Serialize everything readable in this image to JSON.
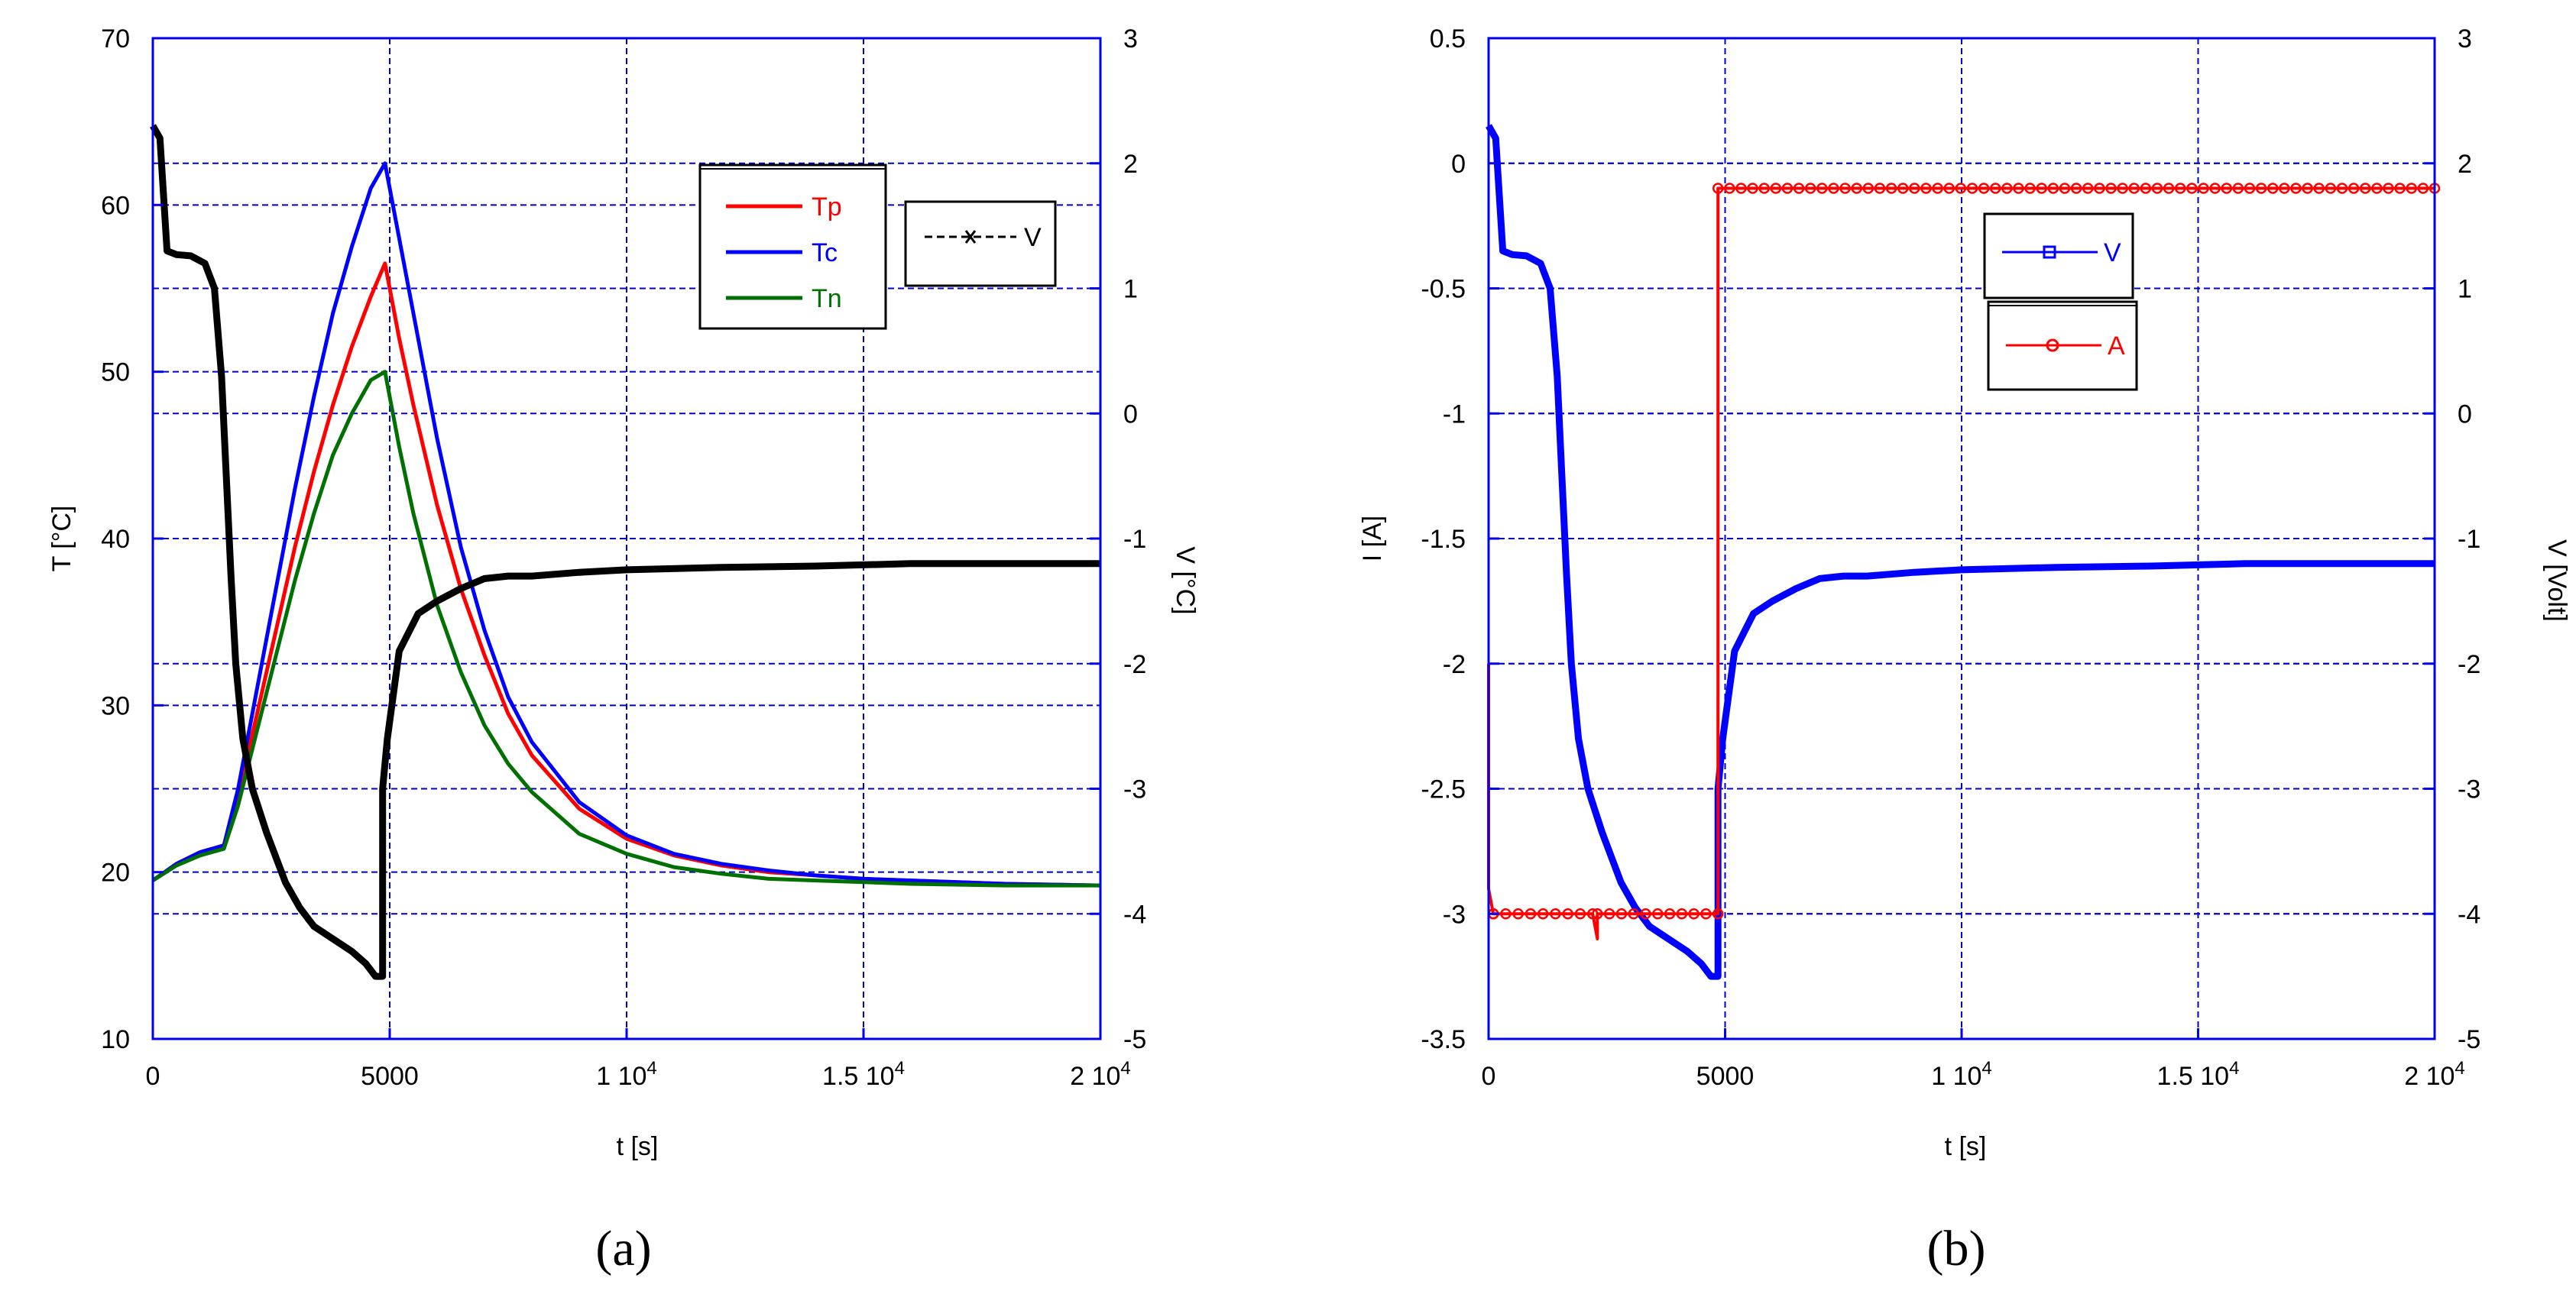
{
  "chart_data": [
    {
      "panel": "a",
      "type": "line",
      "panel_label": "(a)",
      "xlabel": "t [s]",
      "ylabel": "T [°C]",
      "y2label": "V [°C]",
      "xlim": [
        0,
        20000
      ],
      "ylim": [
        10,
        70
      ],
      "y2lim": [
        -5,
        3
      ],
      "xticks": [
        0,
        5000,
        10000,
        15000,
        20000
      ],
      "xtick_labels": [
        "0",
        "5000",
        "1 10",
        "1.5 10",
        "2 10"
      ],
      "xtick_exps": [
        "",
        "",
        "4",
        "4",
        "4"
      ],
      "yticks": [
        10,
        20,
        30,
        40,
        50,
        60,
        70
      ],
      "ytick_labels": [
        "10",
        "20",
        "30",
        "40",
        "50",
        "60",
        "70"
      ],
      "y2ticks": [
        -5,
        -4,
        -3,
        -2,
        -1,
        0,
        1,
        2,
        3
      ],
      "y2tick_labels": [
        "-5",
        "-4",
        "-3",
        "-2",
        "-1",
        "0",
        "1",
        "2",
        "3"
      ],
      "legend1": [
        "Tp",
        "Tc",
        "Tn"
      ],
      "legend2": [
        "V"
      ],
      "series": [
        {
          "name": "Tp",
          "axis": "left",
          "color": "#ff0000",
          "x": [
            0,
            500,
            1000,
            1500,
            1800,
            2200,
            2600,
            3000,
            3400,
            3800,
            4200,
            4600,
            4900,
            5200,
            5500,
            6000,
            6500,
            7000,
            7500,
            8000,
            9000,
            10000,
            11000,
            12000,
            13000,
            14000,
            15000,
            16000,
            18000,
            20000
          ],
          "y": [
            19.5,
            20.5,
            21.2,
            21.6,
            24.5,
            29.5,
            34.5,
            39.5,
            44,
            48,
            51.5,
            54.5,
            56.5,
            52,
            48,
            42,
            37,
            33,
            29.5,
            27,
            23.8,
            22,
            21,
            20.4,
            20,
            19.8,
            19.6,
            19.5,
            19.3,
            19.2
          ]
        },
        {
          "name": "Tc",
          "axis": "left",
          "color": "#0000ff",
          "x": [
            0,
            500,
            1000,
            1500,
            1800,
            2200,
            2600,
            3000,
            3400,
            3800,
            4200,
            4600,
            4900,
            5200,
            5500,
            6000,
            6500,
            7000,
            7500,
            8000,
            9000,
            10000,
            11000,
            12000,
            13000,
            14000,
            15000,
            16000,
            18000,
            20000
          ],
          "y": [
            19.5,
            20.5,
            21.2,
            21.6,
            25,
            31,
            37,
            43,
            48.5,
            53.5,
            57.5,
            61,
            62.5,
            58,
            53.5,
            46,
            39.5,
            34.5,
            30.5,
            27.8,
            24.2,
            22.2,
            21.1,
            20.5,
            20.1,
            19.8,
            19.6,
            19.5,
            19.3,
            19.2
          ]
        },
        {
          "name": "Tn",
          "axis": "left",
          "color": "#007000",
          "x": [
            0,
            500,
            1000,
            1500,
            1800,
            2200,
            2600,
            3000,
            3400,
            3800,
            4200,
            4600,
            4900,
            5200,
            5500,
            6000,
            6500,
            7000,
            7500,
            8000,
            9000,
            10000,
            11000,
            12000,
            13000,
            14000,
            15000,
            16000,
            18000,
            20000
          ],
          "y": [
            19.5,
            20.4,
            21,
            21.4,
            24,
            28.5,
            33,
            37.5,
            41.5,
            45,
            47.5,
            49.5,
            50,
            45.5,
            41.5,
            36,
            32,
            28.8,
            26.5,
            24.8,
            22.3,
            21.1,
            20.3,
            19.9,
            19.6,
            19.5,
            19.4,
            19.3,
            19.2,
            19.2
          ]
        },
        {
          "name": "V",
          "axis": "right",
          "color": "#000000",
          "x": [
            0,
            150,
            300,
            500,
            800,
            1100,
            1300,
            1450,
            1550,
            1650,
            1750,
            1900,
            2100,
            2400,
            2800,
            3100,
            3400,
            3800,
            4200,
            4500,
            4700,
            4850,
            4850,
            4850,
            4950,
            5200,
            5600,
            6000,
            6500,
            7000,
            7500,
            8000,
            9000,
            10000,
            12000,
            14000,
            16000,
            18000,
            20000
          ],
          "y": [
            2.3,
            2.2,
            1.3,
            1.27,
            1.26,
            1.2,
            1.0,
            0.3,
            -0.5,
            -1.3,
            -2.0,
            -2.6,
            -3.0,
            -3.35,
            -3.75,
            -3.95,
            -4.1,
            -4.2,
            -4.3,
            -4.4,
            -4.5,
            -4.5,
            -3.8,
            -3.0,
            -2.6,
            -1.9,
            -1.6,
            -1.5,
            -1.4,
            -1.32,
            -1.3,
            -1.3,
            -1.27,
            -1.25,
            -1.23,
            -1.22,
            -1.2,
            -1.2,
            -1.2
          ]
        }
      ]
    },
    {
      "panel": "b",
      "type": "line",
      "panel_label": "(b)",
      "xlabel": "t [s]",
      "ylabel": "I [A]",
      "y2label": "V [Volt]",
      "xlim": [
        0,
        20000
      ],
      "ylim": [
        -3.5,
        0.5
      ],
      "y2lim": [
        -5,
        3
      ],
      "xticks": [
        0,
        5000,
        10000,
        15000,
        20000
      ],
      "xtick_labels": [
        "0",
        "5000",
        "1 10",
        "1.5 10",
        "2 10"
      ],
      "xtick_exps": [
        "",
        "",
        "4",
        "4",
        "4"
      ],
      "yticks": [
        -3.5,
        -3,
        -2.5,
        -2,
        -1.5,
        -1,
        -0.5,
        0,
        0.5
      ],
      "ytick_labels": [
        "-3.5",
        "-3",
        "-2.5",
        "-2",
        "-1.5",
        "-1",
        "-0.5",
        "0",
        "0.5"
      ],
      "y2ticks": [
        -5,
        -4,
        -3,
        -2,
        -1,
        0,
        1,
        2,
        3
      ],
      "y2tick_labels": [
        "-5",
        "-4",
        "-3",
        "-2",
        "-1",
        "0",
        "1",
        "2",
        "3"
      ],
      "legend": [
        "V",
        "A"
      ],
      "series": [
        {
          "name": "V",
          "axis": "right",
          "color": "#0000ff",
          "x": [
            0,
            150,
            300,
            500,
            800,
            1100,
            1300,
            1450,
            1550,
            1650,
            1750,
            1900,
            2100,
            2400,
            2800,
            3100,
            3400,
            3800,
            4200,
            4500,
            4700,
            4850,
            4850,
            4850,
            4950,
            5200,
            5600,
            6000,
            6500,
            7000,
            7500,
            8000,
            9000,
            10000,
            12000,
            14000,
            16000,
            18000,
            20000
          ],
          "y": [
            2.3,
            2.2,
            1.3,
            1.27,
            1.26,
            1.2,
            1.0,
            0.3,
            -0.5,
            -1.3,
            -2.0,
            -2.6,
            -3.0,
            -3.35,
            -3.75,
            -3.95,
            -4.1,
            -4.2,
            -4.3,
            -4.4,
            -4.5,
            -4.5,
            -3.8,
            -3.0,
            -2.6,
            -1.9,
            -1.6,
            -1.5,
            -1.4,
            -1.32,
            -1.3,
            -1.3,
            -1.27,
            -1.25,
            -1.23,
            -1.22,
            -1.2,
            -1.2,
            -1.2
          ]
        },
        {
          "name": "A",
          "axis": "left",
          "color": "#ff0000",
          "x": [
            0,
            0,
            100,
            100,
            2200,
            2300,
            2300,
            4850,
            4850,
            4850,
            20000
          ],
          "y": [
            -2.0,
            -2.9,
            -3.0,
            -3.0,
            -3.0,
            -3.1,
            -3.0,
            -3.0,
            -1.9,
            -0.1,
            -0.1
          ]
        }
      ]
    }
  ]
}
